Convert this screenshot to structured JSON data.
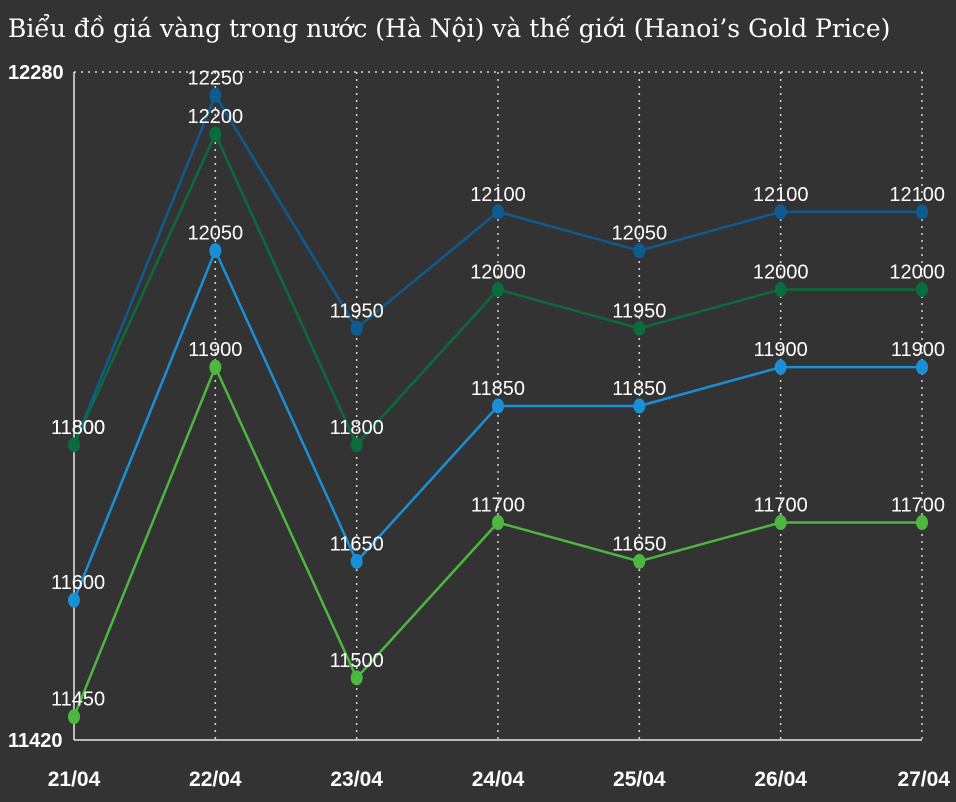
{
  "chart_data": {
    "type": "line",
    "title": "Biểu đồ giá vàng trong nước (Hà Nội) và thế giới (Hanoi’s Gold Price)",
    "xlabel": "",
    "ylabel": "",
    "categories": [
      "21/04",
      "22/04",
      "23/04",
      "24/04",
      "25/04",
      "26/04",
      "27/04"
    ],
    "ylim": [
      11420,
      12280
    ],
    "y_tick_labels": [
      "12280",
      "11420"
    ],
    "grid": "vertical-dotted",
    "legend": "none",
    "series": [
      {
        "color": "#0e5c8f",
        "values": [
          11800,
          12250,
          11950,
          12100,
          12050,
          12100,
          12100
        ]
      },
      {
        "color": "#0a6b3b",
        "values": [
          11800,
          12200,
          11800,
          12000,
          11950,
          12000,
          12000
        ]
      },
      {
        "color": "#1b8fd6",
        "values": [
          11600,
          12050,
          11650,
          11850,
          11850,
          11900,
          11900
        ]
      },
      {
        "color": "#4cb83f",
        "values": [
          11450,
          11900,
          11500,
          11700,
          11650,
          11700,
          11700
        ]
      }
    ]
  }
}
